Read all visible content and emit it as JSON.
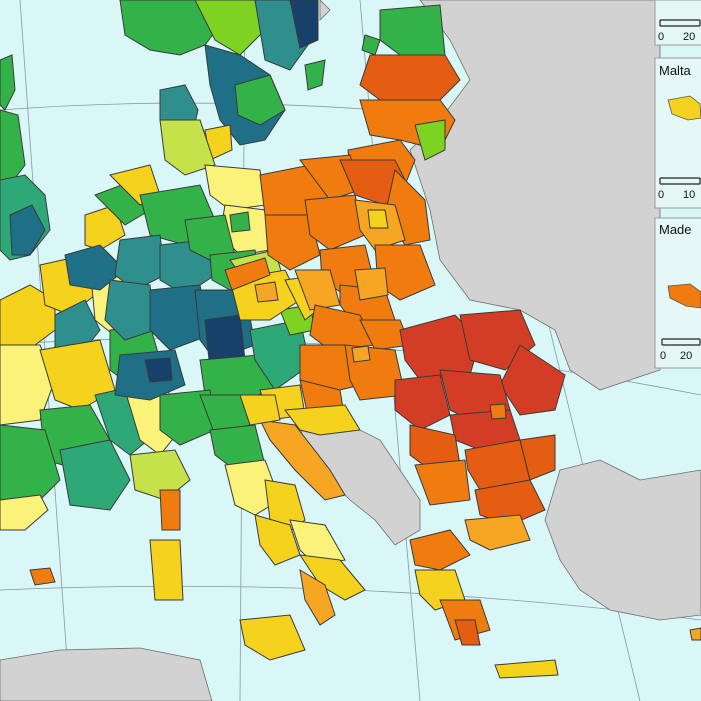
{
  "map": {
    "colors": {
      "sea": "#d9f7f7",
      "non_eu_land": "#d2d2d2",
      "border": "#3a3a3a",
      "graticule": "#8a98a2",
      "inset_bg": "#e6f7f7",
      "dark_blue": "#17406b",
      "teal_blue": "#1f6f86",
      "teal": "#2e8f8c",
      "green_teal": "#2fa877",
      "green": "#34b24a",
      "light_green": "#7ed322",
      "yellow_green": "#c6e24a",
      "light_yellow": "#fbf27a",
      "yellow": "#f4d21e",
      "light_orange": "#f6a623",
      "orange": "#f07c0f",
      "dark_orange": "#e45d12",
      "red": "#d43d25"
    },
    "insets": [
      {
        "label": "",
        "scale": [
          "0",
          "20"
        ]
      },
      {
        "label": "Malta",
        "scale": [
          "0",
          "10"
        ]
      },
      {
        "label": "Made",
        "scale": [
          "0",
          "20"
        ]
      }
    ]
  }
}
